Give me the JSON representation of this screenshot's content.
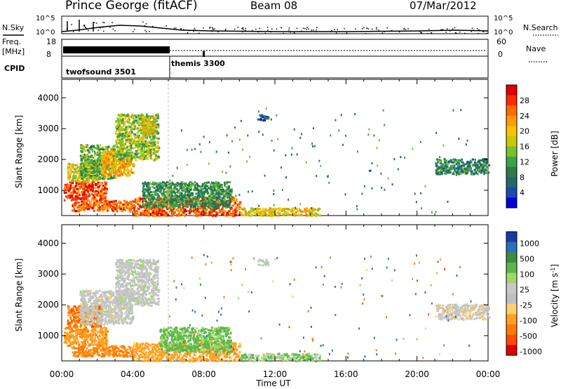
{
  "header": {
    "station": "Prince George (fitACF)",
    "beam": "Beam 08",
    "date": "07/Mar/2012"
  },
  "panels": {
    "nsky_label": "N.Sky",
    "nsearch_label": "N.Search",
    "nsky_ticks": [
      "10^5",
      "10^0"
    ],
    "nsearch_ticks": [
      "10^5",
      "10^0"
    ],
    "freq_label": "Freq.",
    "freq_unit": "[MHz]",
    "freq_ticks": [
      "18",
      "8"
    ],
    "nave_label": "Nave",
    "nave_ticks": [
      "60",
      "0"
    ],
    "cpid_label": "CPID",
    "cpid_segments": [
      {
        "name": "twofsound 3501",
        "start_h": 0,
        "end_h": 6
      },
      {
        "name": "themis 3300",
        "start_h": 6,
        "end_h": 24
      }
    ]
  },
  "chart_data": [
    {
      "type": "heatmap",
      "title": "Power",
      "xlabel": "Time UT",
      "ylabel": "Slant Range [km]",
      "colorbar_label": "Power [dB]",
      "colorbar_ticks": [
        "28",
        "24",
        "20",
        "16",
        "12",
        "8",
        "4"
      ],
      "colorbar_colors": [
        "#e00000",
        "#ff2a00",
        "#ff6a00",
        "#ff9a00",
        "#ffc000",
        "#c8c800",
        "#7cbf2e",
        "#3aa24a",
        "#2f7a4a",
        "#1f6a6a",
        "#1c4ab0",
        "#0000e0"
      ],
      "x_ticks": [
        "00:00",
        "04:00",
        "08:00",
        "12:00",
        "16:00",
        "20:00",
        "00:00"
      ],
      "xlim": [
        0,
        24
      ],
      "y_ticks": [
        "1000",
        "2000",
        "3000",
        "4000"
      ],
      "ylim": [
        180,
        4600
      ],
      "regions": [
        {
          "t0": 0.1,
          "t1": 2.5,
          "r0": 700,
          "r1": 1300,
          "value": 26
        },
        {
          "t0": 0.3,
          "t1": 2.0,
          "r0": 1300,
          "r1": 1900,
          "value": 17
        },
        {
          "t0": 1.0,
          "t1": 3.0,
          "r0": 1400,
          "r1": 2500,
          "value": 12
        },
        {
          "t0": 2.2,
          "t1": 4.0,
          "r0": 1500,
          "r1": 2300,
          "value": 20
        },
        {
          "t0": 3.0,
          "t1": 5.4,
          "r0": 2000,
          "r1": 3500,
          "value": 14
        },
        {
          "t0": 4.5,
          "t1": 5.2,
          "r0": 2800,
          "r1": 3400,
          "value": 18
        },
        {
          "t0": 0.5,
          "t1": 4.0,
          "r0": 350,
          "r1": 700,
          "value": 24
        },
        {
          "t0": 4.0,
          "t1": 10.0,
          "r0": 200,
          "r1": 800,
          "value": 25
        },
        {
          "t0": 4.5,
          "t1": 9.5,
          "r0": 450,
          "r1": 1300,
          "value": 10
        },
        {
          "t0": 10.0,
          "t1": 14.5,
          "r0": 200,
          "r1": 450,
          "value": 18
        },
        {
          "t0": 11.0,
          "t1": 11.6,
          "r0": 3300,
          "r1": 3500,
          "value": 5
        },
        {
          "t0": 21.0,
          "t1": 24.0,
          "r0": 1550,
          "r1": 2050,
          "value": 9
        }
      ]
    },
    {
      "type": "heatmap",
      "title": "Velocity",
      "xlabel": "Time UT",
      "ylabel": "Slant Range [km]",
      "colorbar_label": "Velocity [m s^-1]",
      "colorbar_ticks": [
        "1000",
        "500",
        "100",
        "25",
        "-25",
        "-100",
        "-500",
        "-1000"
      ],
      "colorbar_colors": [
        "#1a3aa8",
        "#2a6fbf",
        "#3a8f3a",
        "#5ab84a",
        "#9ed86a",
        "#c8c8c8",
        "#c0c0c0",
        "#ffd070",
        "#ffa020",
        "#ff7a00",
        "#ff4a00",
        "#e00000"
      ],
      "x_ticks": [
        "00:00",
        "04:00",
        "08:00",
        "12:00",
        "16:00",
        "20:00",
        "00:00"
      ],
      "xlim": [
        0,
        24
      ],
      "y_ticks": [
        "1000",
        "2000",
        "3000",
        "4000"
      ],
      "ylim": [
        180,
        4600
      ],
      "regions": [
        {
          "t0": 0.1,
          "t1": 2.5,
          "r0": 700,
          "r1": 1300,
          "value": -200
        },
        {
          "t0": 0.3,
          "t1": 2.2,
          "r0": 1300,
          "r1": 2000,
          "value": -400
        },
        {
          "t0": 1.0,
          "t1": 4.0,
          "r0": 1400,
          "r1": 2500,
          "value": 0
        },
        {
          "t0": 3.0,
          "t1": 5.4,
          "r0": 2000,
          "r1": 3500,
          "value": 5
        },
        {
          "t0": 0.5,
          "t1": 4.0,
          "r0": 350,
          "r1": 700,
          "value": -300
        },
        {
          "t0": 4.0,
          "t1": 10.0,
          "r0": 200,
          "r1": 800,
          "value": -150
        },
        {
          "t0": 5.5,
          "t1": 9.5,
          "r0": 500,
          "r1": 1300,
          "value": 60
        },
        {
          "t0": 10.0,
          "t1": 14.5,
          "r0": 200,
          "r1": 450,
          "value": 40
        },
        {
          "t0": 11.0,
          "t1": 11.6,
          "r0": 3300,
          "r1": 3500,
          "value": 0
        },
        {
          "t0": 21.0,
          "t1": 24.0,
          "r0": 1550,
          "r1": 2050,
          "value": -10
        }
      ]
    }
  ]
}
